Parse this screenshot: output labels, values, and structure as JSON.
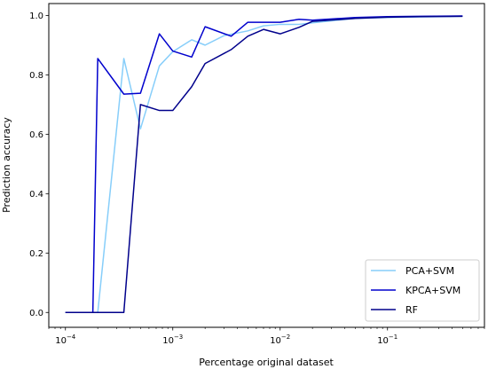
{
  "chart_data": {
    "type": "line",
    "xscale": "log",
    "xlabel": "Percentage original dataset",
    "ylabel": "Prediction accuracy",
    "xlim": [
      7e-05,
      0.8
    ],
    "ylim": [
      -0.05,
      1.04
    ],
    "xticks": [
      {
        "value": 0.0001,
        "base": "10",
        "exp": "−4"
      },
      {
        "value": 0.001,
        "base": "10",
        "exp": "−3"
      },
      {
        "value": 0.01,
        "base": "10",
        "exp": "−2"
      },
      {
        "value": 0.1,
        "base": "10",
        "exp": "−1"
      }
    ],
    "yticks": [
      "0.0",
      "0.2",
      "0.4",
      "0.6",
      "0.8",
      "1.0"
    ],
    "legend_position": "lower-right",
    "grid": false,
    "series": [
      {
        "name": "PCA+SVM",
        "color": "#87cefa",
        "points": [
          [
            0.0001,
            0.0
          ],
          [
            0.00018,
            0.0
          ],
          [
            0.0002,
            0.0
          ],
          [
            0.00035,
            0.855
          ],
          [
            0.0005,
            0.618
          ],
          [
            0.00075,
            0.83
          ],
          [
            0.001,
            0.878
          ],
          [
            0.0015,
            0.918
          ],
          [
            0.002,
            0.9
          ],
          [
            0.003,
            0.932
          ],
          [
            0.005,
            0.948
          ],
          [
            0.007,
            0.965
          ],
          [
            0.01,
            0.97
          ],
          [
            0.015,
            0.97
          ],
          [
            0.02,
            0.975
          ],
          [
            0.05,
            0.99
          ],
          [
            0.1,
            0.993
          ],
          [
            0.2,
            0.995
          ],
          [
            0.5,
            0.997
          ]
        ]
      },
      {
        "name": "KPCA+SVM",
        "color": "#0000cd",
        "points": [
          [
            0.0001,
            0.0
          ],
          [
            0.00018,
            0.0
          ],
          [
            0.0002,
            0.855
          ],
          [
            0.00035,
            0.735
          ],
          [
            0.0005,
            0.738
          ],
          [
            0.00075,
            0.938
          ],
          [
            0.001,
            0.88
          ],
          [
            0.0015,
            0.86
          ],
          [
            0.002,
            0.962
          ],
          [
            0.0035,
            0.93
          ],
          [
            0.005,
            0.977
          ],
          [
            0.01,
            0.977
          ],
          [
            0.015,
            0.987
          ],
          [
            0.02,
            0.984
          ],
          [
            0.05,
            0.993
          ],
          [
            0.1,
            0.996
          ],
          [
            0.2,
            0.997
          ],
          [
            0.5,
            0.998
          ]
        ]
      },
      {
        "name": "RF",
        "color": "#00008b",
        "points": [
          [
            0.0001,
            0.0
          ],
          [
            0.00035,
            0.0
          ],
          [
            0.0005,
            0.7
          ],
          [
            0.00075,
            0.68
          ],
          [
            0.001,
            0.68
          ],
          [
            0.0015,
            0.76
          ],
          [
            0.002,
            0.838
          ],
          [
            0.0035,
            0.885
          ],
          [
            0.005,
            0.93
          ],
          [
            0.007,
            0.953
          ],
          [
            0.01,
            0.938
          ],
          [
            0.015,
            0.96
          ],
          [
            0.02,
            0.98
          ],
          [
            0.05,
            0.99
          ],
          [
            0.1,
            0.994
          ],
          [
            0.2,
            0.996
          ],
          [
            0.5,
            0.997
          ]
        ]
      }
    ]
  }
}
